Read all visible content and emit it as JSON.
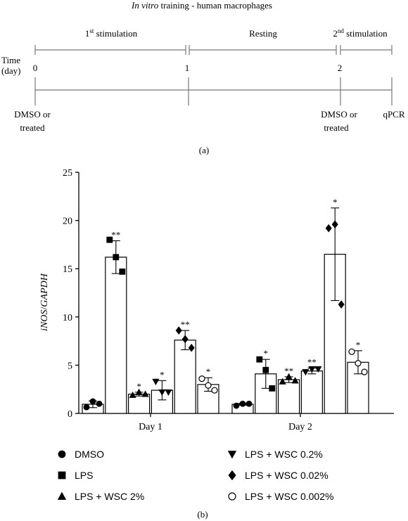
{
  "timeline": {
    "title_italic": "In vitro",
    "title_rest": " training - human macrophages",
    "phases": [
      {
        "main": "1",
        "sup": "st",
        "rest": " stimulation"
      },
      {
        "main": "Resting",
        "sup": "",
        "rest": ""
      },
      {
        "main": "2",
        "sup": "nd",
        "rest": " stimulation"
      }
    ],
    "axis_label_line1": "Time",
    "axis_label_line2": "(day)",
    "day_ticks": [
      "0",
      "1",
      "2"
    ],
    "events": [
      {
        "line1": "DMSO or",
        "line2": "treated"
      },
      {
        "line1": "DMSO or",
        "line2": "treated"
      },
      {
        "line1": "qPCR",
        "line2": ""
      }
    ]
  },
  "panel_labels": {
    "a": "(a)",
    "b": "(b)"
  },
  "chart_data": {
    "type": "bar",
    "ylabel_parts": {
      "italic1": "iNOS",
      "slash": "/",
      "italic2": "GAPDH"
    },
    "ylim": [
      0,
      25
    ],
    "yticks": [
      "0",
      "5",
      "10",
      "15",
      "20",
      "25"
    ],
    "categories": [
      "Day 1",
      "Day 2"
    ],
    "error_bars": "mean ± SD",
    "series": [
      {
        "name": "DMSO",
        "marker": "filled-circle",
        "values": [
          0.95,
          0.95
        ],
        "sd": [
          0.35,
          0.1
        ],
        "sig": [
          "",
          ""
        ],
        "points": [
          [
            0.65,
            1.25,
            1.0
          ],
          [
            0.8,
            1.0,
            1.0
          ]
        ]
      },
      {
        "name": "LPS",
        "marker": "filled-square",
        "values": [
          16.2,
          4.1
        ],
        "sd": [
          1.7,
          1.5
        ],
        "sig": [
          "**",
          "*"
        ],
        "points": [
          [
            18.0,
            16.2,
            14.7
          ],
          [
            5.6,
            4.5,
            2.6
          ]
        ]
      },
      {
        "name": "LPS + WSC 2%",
        "marker": "filled-triangle-up",
        "values": [
          2.0,
          3.5
        ],
        "sd": [
          0.2,
          0.3
        ],
        "sig": [
          "*",
          "**"
        ],
        "points": [
          [
            1.9,
            2.2,
            2.0
          ],
          [
            3.3,
            3.8,
            3.4
          ]
        ]
      },
      {
        "name": "LPS + WSC 0.2%",
        "marker": "filled-triangle-down",
        "values": [
          2.4,
          4.4
        ],
        "sd": [
          1.0,
          0.3
        ],
        "sig": [
          "*",
          "**"
        ],
        "points": [
          [
            3.3,
            2.2,
            2.2
          ],
          [
            4.3,
            4.6,
            4.6
          ]
        ]
      },
      {
        "name": "LPS + WSC 0.02%",
        "marker": "filled-diamond",
        "values": [
          7.6,
          16.5
        ],
        "sd": [
          1.0,
          4.8
        ],
        "sig": [
          "**",
          "*"
        ],
        "points": [
          [
            8.6,
            7.7,
            6.8
          ],
          [
            19.2,
            19.6,
            11.3
          ]
        ]
      },
      {
        "name": "LPS + WSC 0.002%",
        "marker": "open-circle",
        "values": [
          3.0,
          5.3
        ],
        "sd": [
          0.7,
          1.2
        ],
        "sig": [
          "*",
          "*"
        ],
        "points": [
          [
            3.6,
            2.9,
            2.4
          ],
          [
            6.4,
            5.2,
            4.3
          ]
        ]
      }
    ],
    "legend_placement": "below"
  }
}
